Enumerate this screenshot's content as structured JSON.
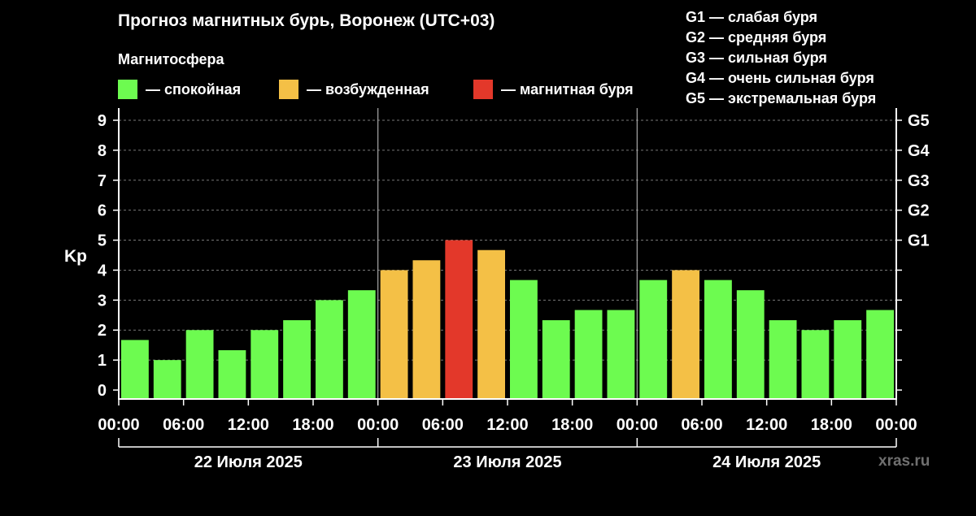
{
  "title": "Прогноз магнитных бурь, Воронеж (UTC+03)",
  "magnetosphere_label": "Магнитосфера",
  "legend": [
    {
      "label": "— спокойная",
      "color": "#6dfb50"
    },
    {
      "label": "— возбужденная",
      "color": "#f4c046"
    },
    {
      "label": "— магнитная буря",
      "color": "#e3382a"
    }
  ],
  "storm_levels": [
    "G1 — слабая буря",
    "G2 — средняя буря",
    "G3 — сильная буря",
    "G4 — очень сильная буря",
    "G5 — экстремальная буря"
  ],
  "watermark": "xras.ru",
  "colors": {
    "calm": "#6dfb50",
    "excited": "#f4c046",
    "storm": "#e3382a",
    "grid": "#777777",
    "background": "#000000"
  },
  "chart_data": {
    "type": "bar",
    "ylabel": "Kp",
    "ylim": [
      0,
      9
    ],
    "y_ticks": [
      "0",
      "1",
      "2",
      "3",
      "4",
      "5",
      "6",
      "7",
      "8",
      "9"
    ],
    "right_ticks": [
      {
        "kp": 5,
        "label": "G1"
      },
      {
        "kp": 6,
        "label": "G2"
      },
      {
        "kp": 7,
        "label": "G3"
      },
      {
        "kp": 8,
        "label": "G4"
      },
      {
        "kp": 9,
        "label": "G5"
      }
    ],
    "x_tick_labels": [
      "00:00",
      "06:00",
      "12:00",
      "18:00",
      "00:00",
      "06:00",
      "12:00",
      "18:00",
      "00:00",
      "06:00",
      "12:00",
      "18:00",
      "00:00"
    ],
    "days": [
      "22 Июля 2025",
      "23 Июля 2025",
      "24 Июля 2025"
    ],
    "grid": "dashed horizontal",
    "values": [
      1.67,
      1.0,
      2.0,
      1.33,
      2.0,
      2.33,
      3.0,
      3.33,
      4.0,
      4.33,
      5.0,
      4.67,
      3.67,
      2.33,
      2.67,
      2.67,
      3.67,
      4.0,
      3.67,
      3.33,
      2.33,
      2.0,
      2.33,
      2.67
    ],
    "levels": [
      "calm",
      "calm",
      "calm",
      "calm",
      "calm",
      "calm",
      "calm",
      "calm",
      "excited",
      "excited",
      "storm",
      "excited",
      "calm",
      "calm",
      "calm",
      "calm",
      "calm",
      "excited",
      "calm",
      "calm",
      "calm",
      "calm",
      "calm",
      "calm"
    ]
  }
}
